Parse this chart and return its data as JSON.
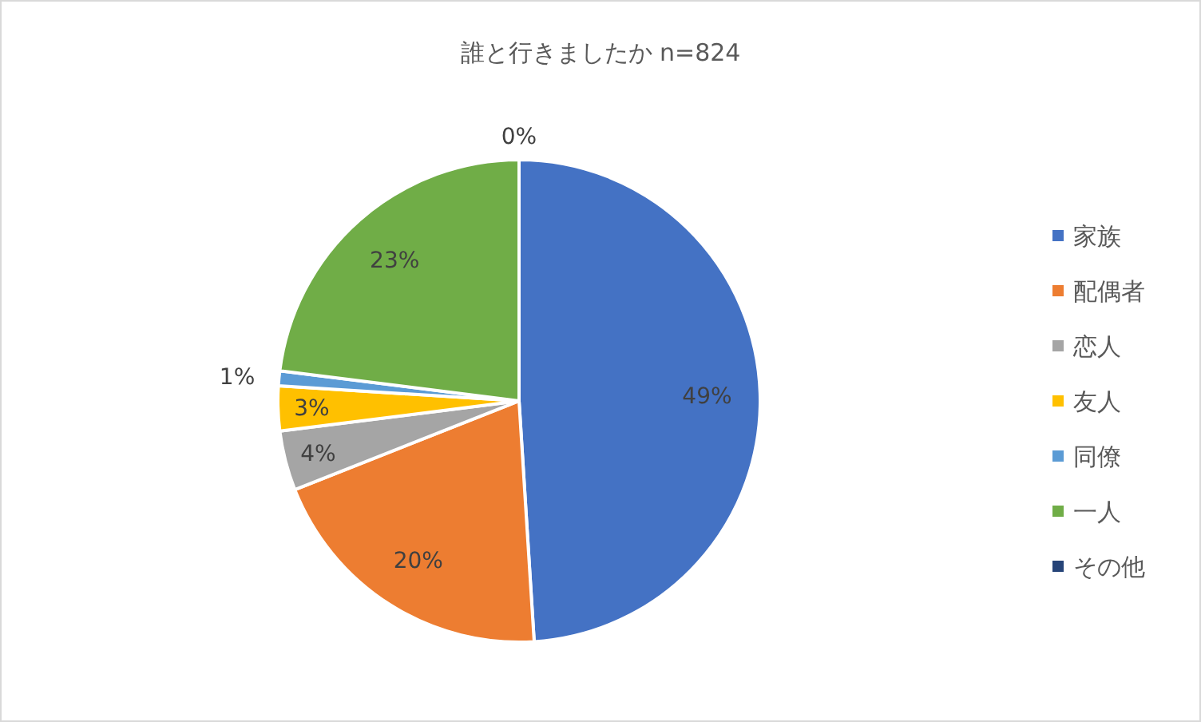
{
  "chart_data": {
    "type": "pie",
    "title": "誰と行きましたか n=824",
    "categories": [
      "家族",
      "配偶者",
      "恋人",
      "友人",
      "同僚",
      "一人",
      "その他"
    ],
    "values": [
      49,
      20,
      4,
      3,
      1,
      23,
      0
    ],
    "value_labels": [
      "49%",
      "20%",
      "4%",
      "3%",
      "1%",
      "23%",
      "0%"
    ],
    "colors": [
      "#4472c4",
      "#ed7d31",
      "#a5a5a5",
      "#ffc000",
      "#5b9bd5",
      "#70ad47",
      "#264478"
    ],
    "legend": "right"
  }
}
